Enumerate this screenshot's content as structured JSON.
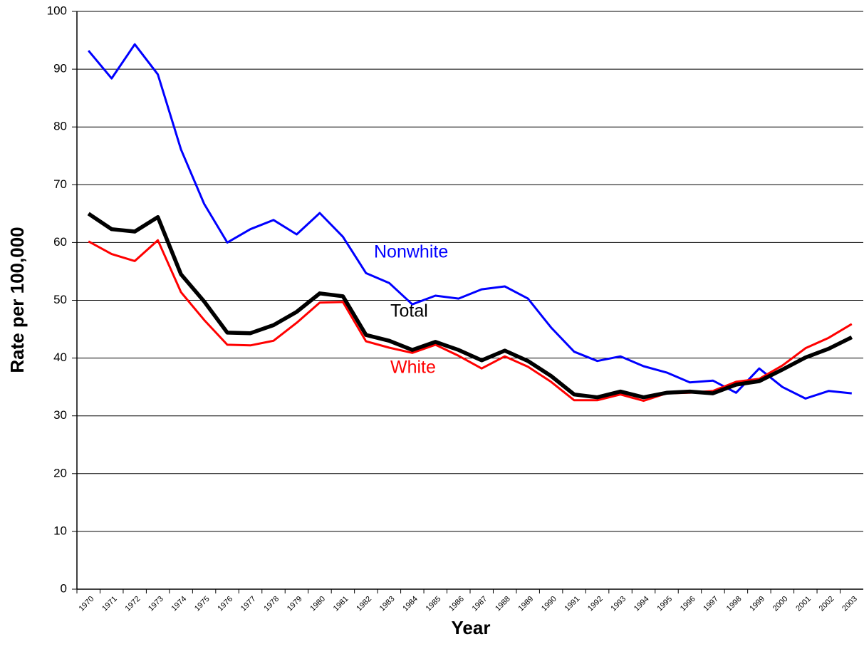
{
  "chart_data": {
    "type": "line",
    "x_label": "Year",
    "y_label": "Rate per 100,000",
    "categories": [
      "1970",
      "1971",
      "1972",
      "1973",
      "1974",
      "1975",
      "1976",
      "1977",
      "1978",
      "1979",
      "1980",
      "1981",
      "1982",
      "1983",
      "1984",
      "1985",
      "1986",
      "1987",
      "1988",
      "1989",
      "1990",
      "1991",
      "1992",
      "1993",
      "1994",
      "1995",
      "1996",
      "1997",
      "1998",
      "1999",
      "2000",
      "2001",
      "2002",
      "2003"
    ],
    "series": [
      {
        "name": "Nonwhite",
        "color": "#0000ff",
        "values": [
          93.2,
          88.4,
          94.3,
          89.1,
          76.1,
          66.7,
          60.0,
          62.3,
          63.9,
          61.4,
          65.1,
          61.0,
          54.7,
          53.0,
          49.3,
          50.8,
          50.3,
          51.9,
          52.4,
          50.3,
          45.3,
          41.1,
          39.5,
          40.3,
          38.6,
          37.5,
          35.8,
          36.1,
          34.0,
          38.2,
          35.0,
          33.0,
          34.3,
          33.9
        ]
      },
      {
        "name": "White",
        "color": "#ff0000",
        "values": [
          60.2,
          58.0,
          56.8,
          60.4,
          51.4,
          46.6,
          42.3,
          42.2,
          43.0,
          46.1,
          49.6,
          49.7,
          42.9,
          41.8,
          40.9,
          42.3,
          40.4,
          38.2,
          40.3,
          38.5,
          35.9,
          32.7,
          32.7,
          33.7,
          32.6,
          33.9,
          34.0,
          34.3,
          35.9,
          36.4,
          38.7,
          41.7,
          43.5,
          45.9
        ]
      },
      {
        "name": "Total",
        "color": "#000000",
        "values": [
          65.0,
          62.3,
          61.9,
          64.4,
          54.5,
          49.8,
          44.4,
          44.3,
          45.7,
          48.0,
          51.2,
          50.7,
          44.0,
          43.0,
          41.4,
          42.8,
          41.4,
          39.6,
          41.3,
          39.5,
          36.9,
          33.7,
          33.2,
          34.2,
          33.2,
          34.0,
          34.2,
          33.9,
          35.4,
          36.0,
          38.0,
          40.1,
          41.6,
          43.6
        ]
      }
    ],
    "ylim": [
      0,
      100
    ],
    "yticks": [
      0,
      10,
      20,
      30,
      40,
      50,
      60,
      70,
      80,
      90,
      100
    ],
    "grid": true
  }
}
